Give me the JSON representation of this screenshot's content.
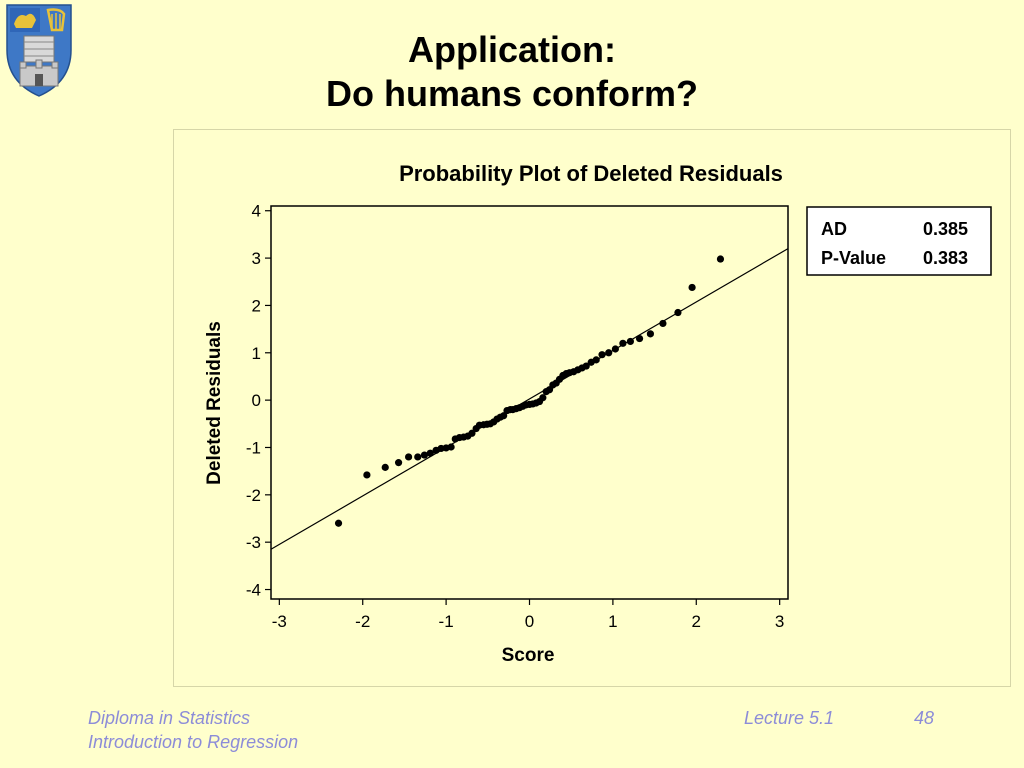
{
  "slide": {
    "title_line1": "Application:",
    "title_line2": "Do humans conform?"
  },
  "footer": {
    "left_line1": "Diploma in Statistics",
    "left_line2": "Introduction to Regression",
    "lecture": "Lecture 5.1",
    "page": "48"
  },
  "logo": {
    "icon": "university-crest-icon"
  },
  "stats_box": {
    "ad_label": "AD",
    "ad_value": "0.385",
    "pvalue_label": "P-Value",
    "pvalue_value": "0.383"
  },
  "chart_data": {
    "type": "scatter",
    "title": "Probability Plot of Deleted Residuals",
    "xlabel": "Score",
    "ylabel": "Deleted Residuals",
    "xlim": [
      -3.1,
      3.1
    ],
    "ylim": [
      -4.2,
      4.1
    ],
    "xticks": [
      -3,
      -2,
      -1,
      0,
      1,
      2,
      3
    ],
    "yticks": [
      -4,
      -3,
      -2,
      -1,
      0,
      1,
      2,
      3,
      4
    ],
    "xtick_labels": [
      "-3",
      "-2",
      "-1",
      "0",
      "1",
      "2",
      "3"
    ],
    "ytick_labels": [
      "-4",
      "-3",
      "-2",
      "-1",
      "0",
      "1",
      "2",
      "3",
      "4"
    ],
    "grid": false,
    "reference_line": {
      "x1": -3.1,
      "y1": -3.15,
      "x2": 3.1,
      "y2": 3.2
    },
    "points": [
      [
        -2.29,
        -2.6
      ],
      [
        -1.95,
        -1.58
      ],
      [
        -1.73,
        -1.42
      ],
      [
        -1.57,
        -1.32
      ],
      [
        -1.45,
        -1.2
      ],
      [
        -1.34,
        -1.2
      ],
      [
        -1.26,
        -1.16
      ],
      [
        -1.19,
        -1.12
      ],
      [
        -1.12,
        -1.06
      ],
      [
        -1.06,
        -1.02
      ],
      [
        -1.0,
        -1.01
      ],
      [
        -0.94,
        -0.99
      ],
      [
        -0.89,
        -0.82
      ],
      [
        -0.84,
        -0.79
      ],
      [
        -0.79,
        -0.78
      ],
      [
        -0.74,
        -0.76
      ],
      [
        -0.69,
        -0.7
      ],
      [
        -0.64,
        -0.6
      ],
      [
        -0.6,
        -0.53
      ],
      [
        -0.55,
        -0.52
      ],
      [
        -0.51,
        -0.51
      ],
      [
        -0.47,
        -0.5
      ],
      [
        -0.43,
        -0.46
      ],
      [
        -0.39,
        -0.4
      ],
      [
        -0.35,
        -0.36
      ],
      [
        -0.31,
        -0.33
      ],
      [
        -0.27,
        -0.22
      ],
      [
        -0.23,
        -0.2
      ],
      [
        -0.2,
        -0.2
      ],
      [
        -0.16,
        -0.18
      ],
      [
        -0.12,
        -0.16
      ],
      [
        -0.08,
        -0.13
      ],
      [
        -0.04,
        -0.1
      ],
      [
        0.0,
        -0.09
      ],
      [
        0.04,
        -0.08
      ],
      [
        0.08,
        -0.06
      ],
      [
        0.12,
        -0.03
      ],
      [
        0.16,
        0.05
      ],
      [
        0.2,
        0.18
      ],
      [
        0.24,
        0.22
      ],
      [
        0.28,
        0.32
      ],
      [
        0.32,
        0.36
      ],
      [
        0.36,
        0.44
      ],
      [
        0.4,
        0.52
      ],
      [
        0.44,
        0.56
      ],
      [
        0.48,
        0.58
      ],
      [
        0.53,
        0.6
      ],
      [
        0.58,
        0.64
      ],
      [
        0.63,
        0.68
      ],
      [
        0.68,
        0.72
      ],
      [
        0.74,
        0.8
      ],
      [
        0.8,
        0.85
      ],
      [
        0.87,
        0.96
      ],
      [
        0.95,
        1.0
      ],
      [
        1.03,
        1.08
      ],
      [
        1.12,
        1.2
      ],
      [
        1.21,
        1.24
      ],
      [
        1.32,
        1.3
      ],
      [
        1.45,
        1.4
      ],
      [
        1.6,
        1.62
      ],
      [
        1.78,
        1.85
      ],
      [
        1.95,
        2.38
      ],
      [
        2.29,
        2.98
      ]
    ]
  }
}
